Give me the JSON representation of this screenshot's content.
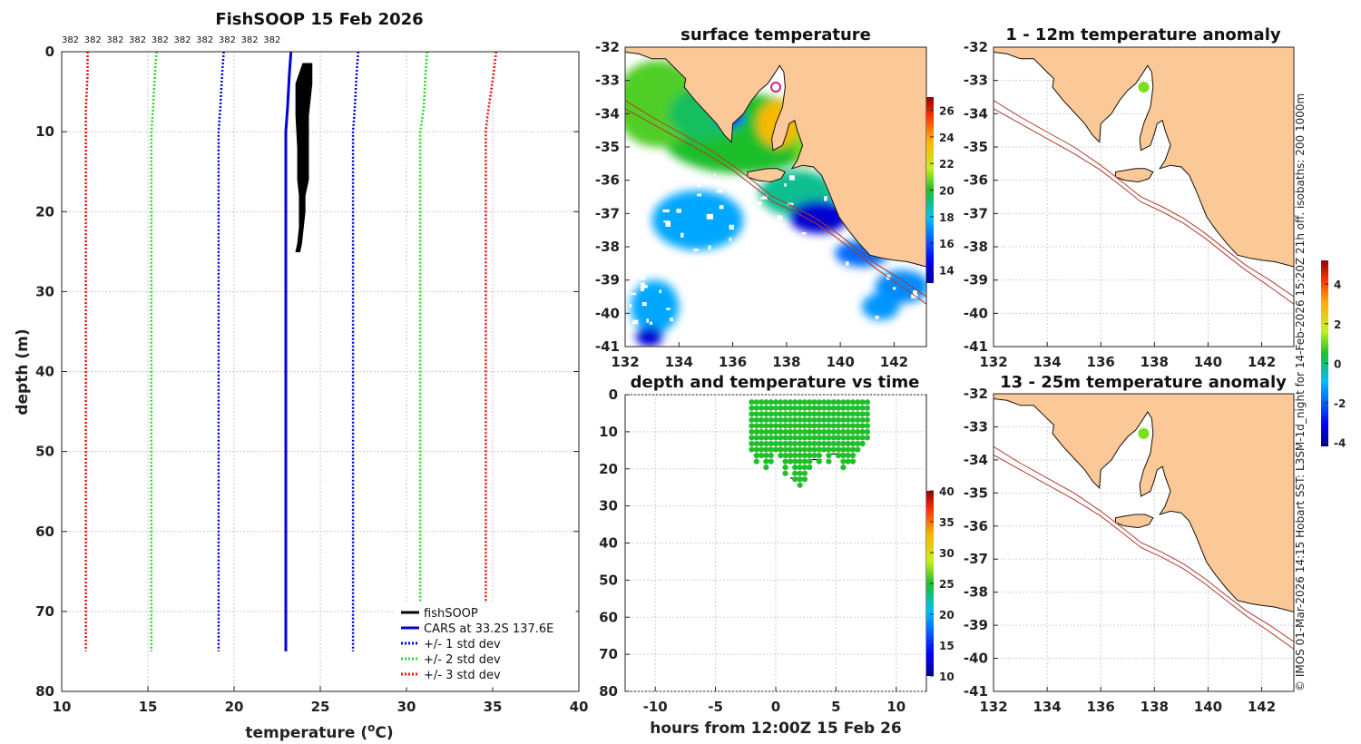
{
  "title": "FishSOOP 15 Feb 2026",
  "credit": "© IMOS 01-Mar-2026 14:15 Hobart SST: L3SM-1d_night for 14-Feb-2026 15:20Z 21h off. isobaths: 200  1000m",
  "colors": {
    "land": "#fbc998",
    "isobath": "#b03a2e",
    "obs": "#000000",
    "cars": "#0000dd",
    "sd1": "#0000dd",
    "sd2": "#22dd22",
    "sd3": "#ee1111",
    "boat": "#c8257a",
    "dot": "#1fbf2a"
  },
  "chart_data": [
    {
      "id": "profile",
      "type": "line",
      "title": "FishSOOP 15 Feb 2026",
      "xlabel": "temperature (°C)",
      "xlabel_main": "temperature (",
      "xlabel_sup": "o",
      "xlabel_end": "C)",
      "ylabel": "depth (m)",
      "xlim": [
        10,
        40
      ],
      "ylim": [
        0,
        80
      ],
      "xticks": [
        "10",
        "15",
        "20",
        "25",
        "30",
        "35",
        "40"
      ],
      "yticks": [
        "0",
        "10",
        "20",
        "30",
        "40",
        "50",
        "60",
        "70",
        "80"
      ],
      "counts": [
        "382",
        "382",
        "382",
        "382",
        "382",
        "382",
        "382",
        "382",
        "382",
        "382"
      ],
      "count_positions": [
        10.5,
        11.8,
        13.1,
        14.4,
        15.7,
        17.0,
        18.3,
        19.6,
        20.9,
        22.2
      ],
      "legend": [
        "fishSOOP",
        "CARS at 33.2S 137.6E",
        "+/- 1 std dev",
        "+/- 2 std dev",
        "+/- 3 std dev"
      ],
      "series": [
        {
          "name": "CARS at 33.2S 137.6E",
          "style": "solid",
          "color": "#0000dd",
          "points": [
            [
              23.3,
              0
            ],
            [
              23.2,
              3
            ],
            [
              23.1,
              7
            ],
            [
              23.0,
              10
            ],
            [
              23.0,
              20
            ],
            [
              23.0,
              40
            ],
            [
              23.0,
              60
            ],
            [
              23.0,
              75
            ]
          ]
        },
        {
          "name": "+1 std dev",
          "style": "dot",
          "color": "#0000dd",
          "points": [
            [
              27.2,
              0
            ],
            [
              27.1,
              3
            ],
            [
              27.0,
              7
            ],
            [
              26.9,
              10
            ],
            [
              26.9,
              40
            ],
            [
              26.9,
              75
            ]
          ]
        },
        {
          "name": "-1 std dev",
          "style": "dot",
          "color": "#0000dd",
          "points": [
            [
              19.4,
              0
            ],
            [
              19.3,
              3
            ],
            [
              19.2,
              7
            ],
            [
              19.1,
              10
            ],
            [
              19.1,
              40
            ],
            [
              19.1,
              75
            ]
          ]
        },
        {
          "name": "+2 std dev",
          "style": "dot",
          "color": "#22dd22",
          "points": [
            [
              31.2,
              0
            ],
            [
              31.1,
              3
            ],
            [
              31.0,
              7
            ],
            [
              30.8,
              10
            ],
            [
              30.8,
              40
            ],
            [
              30.8,
              75
            ]
          ]
        },
        {
          "name": "-2 std dev",
          "style": "dot",
          "color": "#22dd22",
          "points": [
            [
              15.5,
              0
            ],
            [
              15.4,
              3
            ],
            [
              15.3,
              7
            ],
            [
              15.2,
              10
            ],
            [
              15.2,
              40
            ],
            [
              15.2,
              75
            ]
          ]
        },
        {
          "name": "+3 std dev",
          "style": "dot",
          "color": "#ee1111",
          "points": [
            [
              35.2,
              0
            ],
            [
              35.1,
              2
            ],
            [
              34.9,
              5
            ],
            [
              34.7,
              8
            ],
            [
              34.6,
              10
            ],
            [
              34.6,
              40
            ],
            [
              34.6,
              75
            ]
          ]
        },
        {
          "name": "-3 std dev",
          "style": "dot",
          "color": "#ee1111",
          "points": [
            [
              11.5,
              0
            ],
            [
              11.5,
              3
            ],
            [
              11.4,
              7
            ],
            [
              11.4,
              10
            ],
            [
              11.4,
              40
            ],
            [
              11.4,
              75
            ]
          ]
        }
      ],
      "fishsoop_band": {
        "warm_edge": [
          [
            24.5,
            1.5
          ],
          [
            24.5,
            4
          ],
          [
            24.3,
            8
          ],
          [
            24.3,
            12
          ],
          [
            24.3,
            16
          ],
          [
            24.1,
            18
          ],
          [
            24.1,
            20
          ],
          [
            24.0,
            22
          ],
          [
            23.9,
            24
          ],
          [
            23.8,
            25
          ]
        ],
        "cool_edge": [
          [
            24.0,
            1.5
          ],
          [
            23.6,
            4
          ],
          [
            23.6,
            8
          ],
          [
            23.7,
            12
          ],
          [
            23.7,
            16
          ],
          [
            23.8,
            18
          ],
          [
            23.8,
            20
          ],
          [
            23.8,
            22
          ],
          [
            23.7,
            24
          ],
          [
            23.6,
            25
          ]
        ]
      }
    },
    {
      "id": "sst",
      "type": "heatmap",
      "title": "surface temperature",
      "xlim": [
        132,
        143.2
      ],
      "ylim": [
        -41,
        -32
      ],
      "xticks": [
        "132",
        "134",
        "136",
        "138",
        "140",
        "142"
      ],
      "yticks": [
        "-32",
        "-33",
        "-34",
        "-35",
        "-36",
        "-37",
        "-38",
        "-39",
        "-40",
        "-41"
      ],
      "colorbar": {
        "min": 13,
        "max": 27,
        "ticks": [
          "14",
          "16",
          "18",
          "20",
          "22",
          "24",
          "26"
        ]
      },
      "blobs": [
        {
          "lon": 136.3,
          "lat": -34.6,
          "rx": 3.0,
          "ry": 1.2,
          "temp": 20.0
        },
        {
          "lon": 133.2,
          "lat": -33.7,
          "rx": 1.6,
          "ry": 1.3,
          "temp": 20.5
        },
        {
          "lon": 135.0,
          "lat": -34.0,
          "rx": 1.4,
          "ry": 0.8,
          "temp": 19.5
        },
        {
          "lon": 137.7,
          "lat": -34.3,
          "rx": 0.8,
          "ry": 0.7,
          "temp": 23.5
        },
        {
          "lon": 138.7,
          "lat": -35.0,
          "rx": 0.4,
          "ry": 0.6,
          "temp": 21.0
        },
        {
          "lon": 138.4,
          "lat": -36.4,
          "rx": 1.4,
          "ry": 0.7,
          "temp": 19.0
        },
        {
          "lon": 139.2,
          "lat": -37.1,
          "rx": 1.1,
          "ry": 0.5,
          "temp": 14.0
        },
        {
          "lon": 140.8,
          "lat": -38.2,
          "rx": 1.0,
          "ry": 0.4,
          "temp": 16.5
        },
        {
          "lon": 142.3,
          "lat": -39.2,
          "rx": 1.0,
          "ry": 0.5,
          "temp": 17.0
        },
        {
          "lon": 133.1,
          "lat": -39.8,
          "rx": 0.9,
          "ry": 0.8,
          "temp": 17.5
        },
        {
          "lon": 134.7,
          "lat": -37.2,
          "rx": 1.7,
          "ry": 0.9,
          "temp": 17.5
        },
        {
          "lon": 141.5,
          "lat": -39.8,
          "rx": 0.7,
          "ry": 0.4,
          "temp": 17.2
        },
        {
          "lon": 132.9,
          "lat": -40.7,
          "rx": 0.5,
          "ry": 0.3,
          "temp": 14.0
        },
        {
          "lon": 135.9,
          "lat": -34.1,
          "rx": 0.5,
          "ry": 0.3,
          "temp": 15.0
        }
      ],
      "boat": {
        "lon": 137.6,
        "lat": -33.2
      }
    },
    {
      "id": "timeseries",
      "type": "scatter",
      "title": "depth and temperature vs time",
      "xlabel": "hours from 12:00Z 15 Feb 26",
      "xlim": [
        -12.5,
        12.5
      ],
      "ylim": [
        0,
        80
      ],
      "xticks": [
        "-10",
        "-5",
        "0",
        "5",
        "10"
      ],
      "yticks": [
        "0",
        "10",
        "20",
        "30",
        "40",
        "50",
        "60",
        "70",
        "80"
      ],
      "colorbar": {
        "min": 10,
        "max": 40,
        "ticks": [
          "10",
          "15",
          "20",
          "25",
          "30",
          "35",
          "40"
        ]
      },
      "casts": [
        [
          -2.0,
          16
        ],
        [
          -1.6,
          19
        ],
        [
          -1.2,
          17
        ],
        [
          -0.8,
          21
        ],
        [
          -0.4,
          18
        ],
        [
          0.0,
          15
        ],
        [
          0.4,
          17
        ],
        [
          0.8,
          22
        ],
        [
          1.2,
          19
        ],
        [
          1.6,
          24
        ],
        [
          2.0,
          25
        ],
        [
          2.4,
          23
        ],
        [
          2.8,
          20
        ],
        [
          3.2,
          17
        ],
        [
          3.6,
          19
        ],
        [
          4.0,
          16
        ],
        [
          4.4,
          18
        ],
        [
          4.8,
          15
        ],
        [
          5.2,
          17
        ],
        [
          5.6,
          20
        ],
        [
          6.0,
          18
        ],
        [
          6.4,
          19
        ],
        [
          6.8,
          16
        ],
        [
          7.2,
          14
        ],
        [
          7.6,
          13
        ]
      ],
      "bottom_segments": [
        [
          -1.2,
          0.4,
          14.5
        ],
        [
          1.2,
          2.4,
          22.5
        ],
        [
          3.0,
          3.8,
          17.5
        ],
        [
          4.6,
          5.8,
          16.0
        ],
        [
          6.4,
          7.6,
          11.5
        ]
      ]
    },
    {
      "id": "anom1",
      "type": "heatmap",
      "title": "1 - 12m temperature anomaly",
      "xlim": [
        132,
        143.2
      ],
      "ylim": [
        -41,
        -32
      ],
      "xticks": [
        "132",
        "134",
        "136",
        "138",
        "140",
        "142"
      ],
      "yticks": [
        "-32",
        "-33",
        "-34",
        "-35",
        "-36",
        "-37",
        "-38",
        "-39",
        "-40",
        "-41"
      ],
      "point": {
        "lon": 137.6,
        "lat": -33.2,
        "anomaly": 0.9
      },
      "colorbar": {
        "min": -4.2,
        "max": 5.2,
        "ticks": [
          "-4",
          "-2",
          "0",
          "2",
          "4"
        ]
      }
    },
    {
      "id": "anom2",
      "type": "heatmap",
      "title": "13 - 25m temperature anomaly",
      "xlim": [
        132,
        143.2
      ],
      "ylim": [
        -41,
        -32
      ],
      "xticks": [
        "132",
        "134",
        "136",
        "138",
        "140",
        "142"
      ],
      "yticks": [
        "-32",
        "-33",
        "-34",
        "-35",
        "-36",
        "-37",
        "-38",
        "-39",
        "-40",
        "-41"
      ],
      "point": {
        "lon": 137.6,
        "lat": -33.2,
        "anomaly": 1.0
      }
    }
  ],
  "geo": {
    "land": [
      [
        132.0,
        -32.0
      ],
      [
        132.0,
        -32.15
      ],
      [
        132.5,
        -32.2
      ],
      [
        133.0,
        -32.35
      ],
      [
        133.5,
        -32.35
      ],
      [
        134.0,
        -32.75
      ],
      [
        134.25,
        -32.95
      ],
      [
        134.2,
        -33.2
      ],
      [
        134.6,
        -33.6
      ],
      [
        135.0,
        -33.95
      ],
      [
        135.4,
        -34.3
      ],
      [
        135.7,
        -34.65
      ],
      [
        135.95,
        -34.85
      ],
      [
        136.0,
        -34.3
      ],
      [
        136.4,
        -34.0
      ],
      [
        136.7,
        -33.6
      ],
      [
        137.0,
        -33.3
      ],
      [
        137.3,
        -33.1
      ],
      [
        137.55,
        -32.8
      ],
      [
        137.75,
        -32.55
      ],
      [
        137.9,
        -32.75
      ],
      [
        137.95,
        -33.2
      ],
      [
        137.85,
        -33.8
      ],
      [
        137.6,
        -34.3
      ],
      [
        137.45,
        -34.75
      ],
      [
        137.5,
        -35.1
      ],
      [
        137.85,
        -34.95
      ],
      [
        138.0,
        -34.6
      ],
      [
        138.1,
        -34.3
      ],
      [
        138.3,
        -34.2
      ],
      [
        138.4,
        -34.5
      ],
      [
        138.6,
        -34.95
      ],
      [
        138.4,
        -35.4
      ],
      [
        138.2,
        -35.65
      ],
      [
        138.6,
        -35.55
      ],
      [
        139.0,
        -35.6
      ],
      [
        139.3,
        -35.85
      ],
      [
        139.55,
        -36.3
      ],
      [
        139.75,
        -36.7
      ],
      [
        139.95,
        -37.1
      ],
      [
        140.3,
        -37.5
      ],
      [
        140.7,
        -37.9
      ],
      [
        141.1,
        -38.25
      ],
      [
        141.6,
        -38.35
      ],
      [
        142.0,
        -38.4
      ],
      [
        142.5,
        -38.45
      ],
      [
        143.2,
        -38.6
      ],
      [
        143.2,
        -32.0
      ]
    ],
    "island": [
      [
        136.55,
        -35.75
      ],
      [
        136.9,
        -35.7
      ],
      [
        137.3,
        -35.65
      ],
      [
        137.65,
        -35.65
      ],
      [
        137.95,
        -35.75
      ],
      [
        137.8,
        -35.95
      ],
      [
        137.4,
        -36.05
      ],
      [
        136.9,
        -36.0
      ],
      [
        136.55,
        -35.9
      ]
    ],
    "isobath200": [
      [
        132.0,
        -33.6
      ],
      [
        133.0,
        -34.1
      ],
      [
        134.0,
        -34.55
      ],
      [
        135.0,
        -35.0
      ],
      [
        136.0,
        -35.55
      ],
      [
        136.8,
        -36.05
      ],
      [
        137.5,
        -36.5
      ],
      [
        138.3,
        -36.8
      ],
      [
        139.1,
        -37.15
      ],
      [
        139.9,
        -37.6
      ],
      [
        140.6,
        -38.05
      ],
      [
        141.4,
        -38.55
      ],
      [
        142.3,
        -39.0
      ],
      [
        143.2,
        -39.5
      ]
    ],
    "isobath1000": [
      [
        132.0,
        -33.85
      ],
      [
        133.0,
        -34.3
      ],
      [
        134.0,
        -34.75
      ],
      [
        135.0,
        -35.2
      ],
      [
        136.0,
        -35.7
      ],
      [
        136.8,
        -36.2
      ],
      [
        137.5,
        -36.65
      ],
      [
        138.3,
        -36.95
      ],
      [
        139.1,
        -37.3
      ],
      [
        139.9,
        -37.75
      ],
      [
        140.6,
        -38.2
      ],
      [
        141.4,
        -38.7
      ],
      [
        142.3,
        -39.2
      ],
      [
        143.2,
        -39.72
      ]
    ]
  }
}
